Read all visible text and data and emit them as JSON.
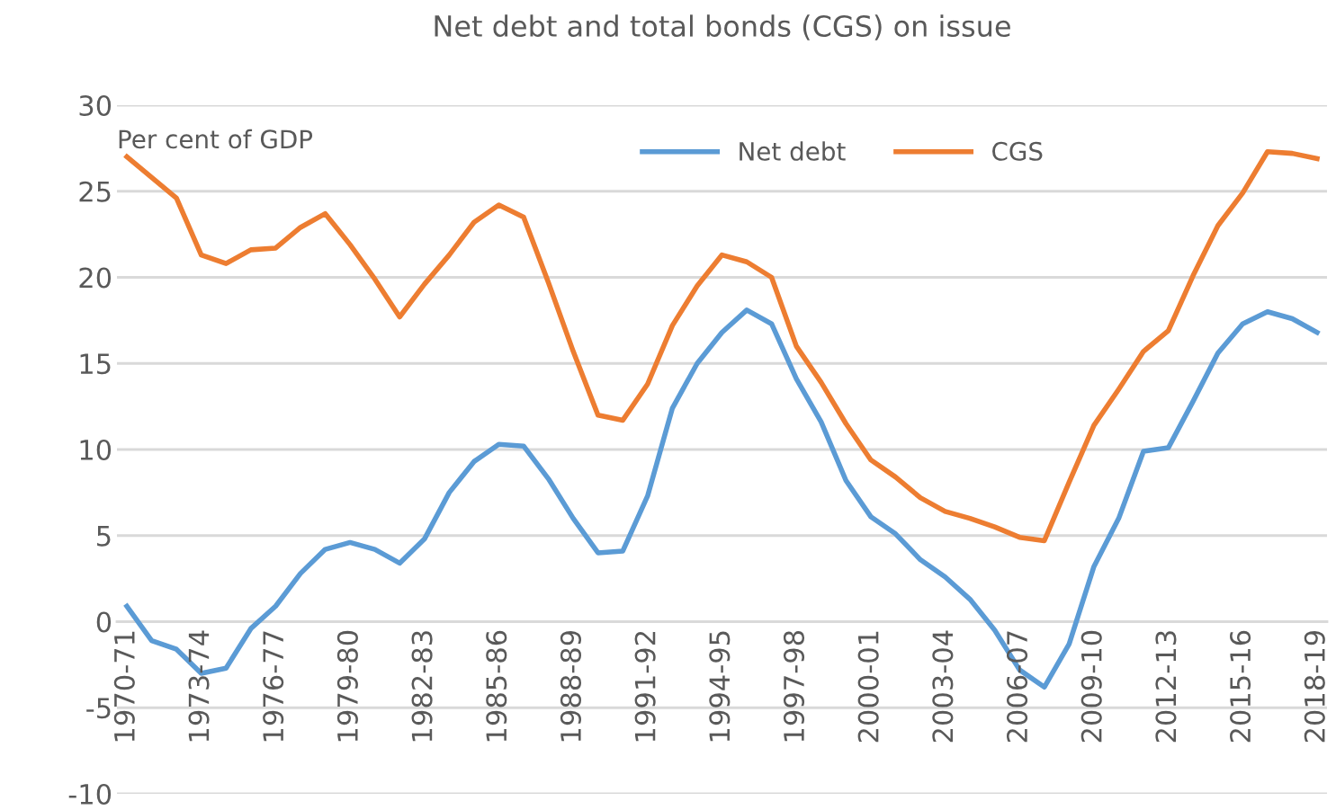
{
  "chart_data": {
    "type": "line",
    "title": "Net debt and total bonds (CGS) on issue",
    "ylabel": "Per cent of GDP",
    "categories": [
      "1970-71",
      null,
      null,
      "1973-74",
      null,
      null,
      "1976-77",
      null,
      null,
      "1979-80",
      null,
      null,
      "1982-83",
      null,
      null,
      "1985-86",
      null,
      null,
      "1988-89",
      null,
      null,
      "1991-92",
      null,
      null,
      "1994-95",
      null,
      null,
      "1997-98",
      null,
      null,
      "2000-01",
      null,
      null,
      "2003-04",
      null,
      null,
      "2006-07",
      null,
      null,
      "2009-10",
      null,
      null,
      "2012-13",
      null,
      null,
      "2015-16",
      null,
      null,
      "2018-19"
    ],
    "series": [
      {
        "name": "Net debt",
        "color": "#5b9bd5",
        "values": [
          0.9,
          -1.1,
          -1.6,
          -3.0,
          -2.7,
          -0.4,
          0.9,
          2.8,
          4.2,
          4.6,
          4.2,
          3.4,
          4.8,
          7.5,
          9.3,
          10.3,
          10.2,
          8.3,
          6.0,
          4.0,
          4.1,
          7.3,
          12.4,
          15.0,
          16.8,
          18.1,
          17.3,
          14.1,
          11.6,
          8.2,
          6.1,
          5.1,
          3.6,
          2.6,
          1.3,
          -0.5,
          -2.8,
          -3.8,
          -1.3,
          3.2,
          6.0,
          9.9,
          10.1,
          12.8,
          15.6,
          17.3,
          18.0,
          17.6,
          16.8
        ]
      },
      {
        "name": "CGS",
        "color": "#ed7d31",
        "values": [
          27.0,
          25.8,
          24.6,
          21.3,
          20.8,
          21.6,
          21.7,
          22.9,
          23.7,
          21.9,
          19.9,
          17.7,
          19.6,
          21.3,
          23.2,
          24.2,
          23.5,
          19.7,
          15.7,
          12.0,
          11.7,
          13.8,
          17.2,
          19.5,
          21.3,
          20.9,
          20.0,
          16.0,
          13.9,
          11.5,
          9.4,
          8.4,
          7.2,
          6.4,
          6.0,
          5.5,
          4.9,
          4.7,
          8.1,
          11.4,
          13.5,
          15.7,
          16.9,
          20.1,
          23.0,
          24.9,
          27.3,
          27.2,
          26.9
        ]
      }
    ],
    "ylim": [
      -10,
      30
    ],
    "yticks": [
      30,
      25,
      20,
      15,
      10,
      5,
      0,
      -5,
      -10
    ],
    "grid": "y",
    "legend": "top",
    "marker": "none",
    "line_style": "solid"
  }
}
